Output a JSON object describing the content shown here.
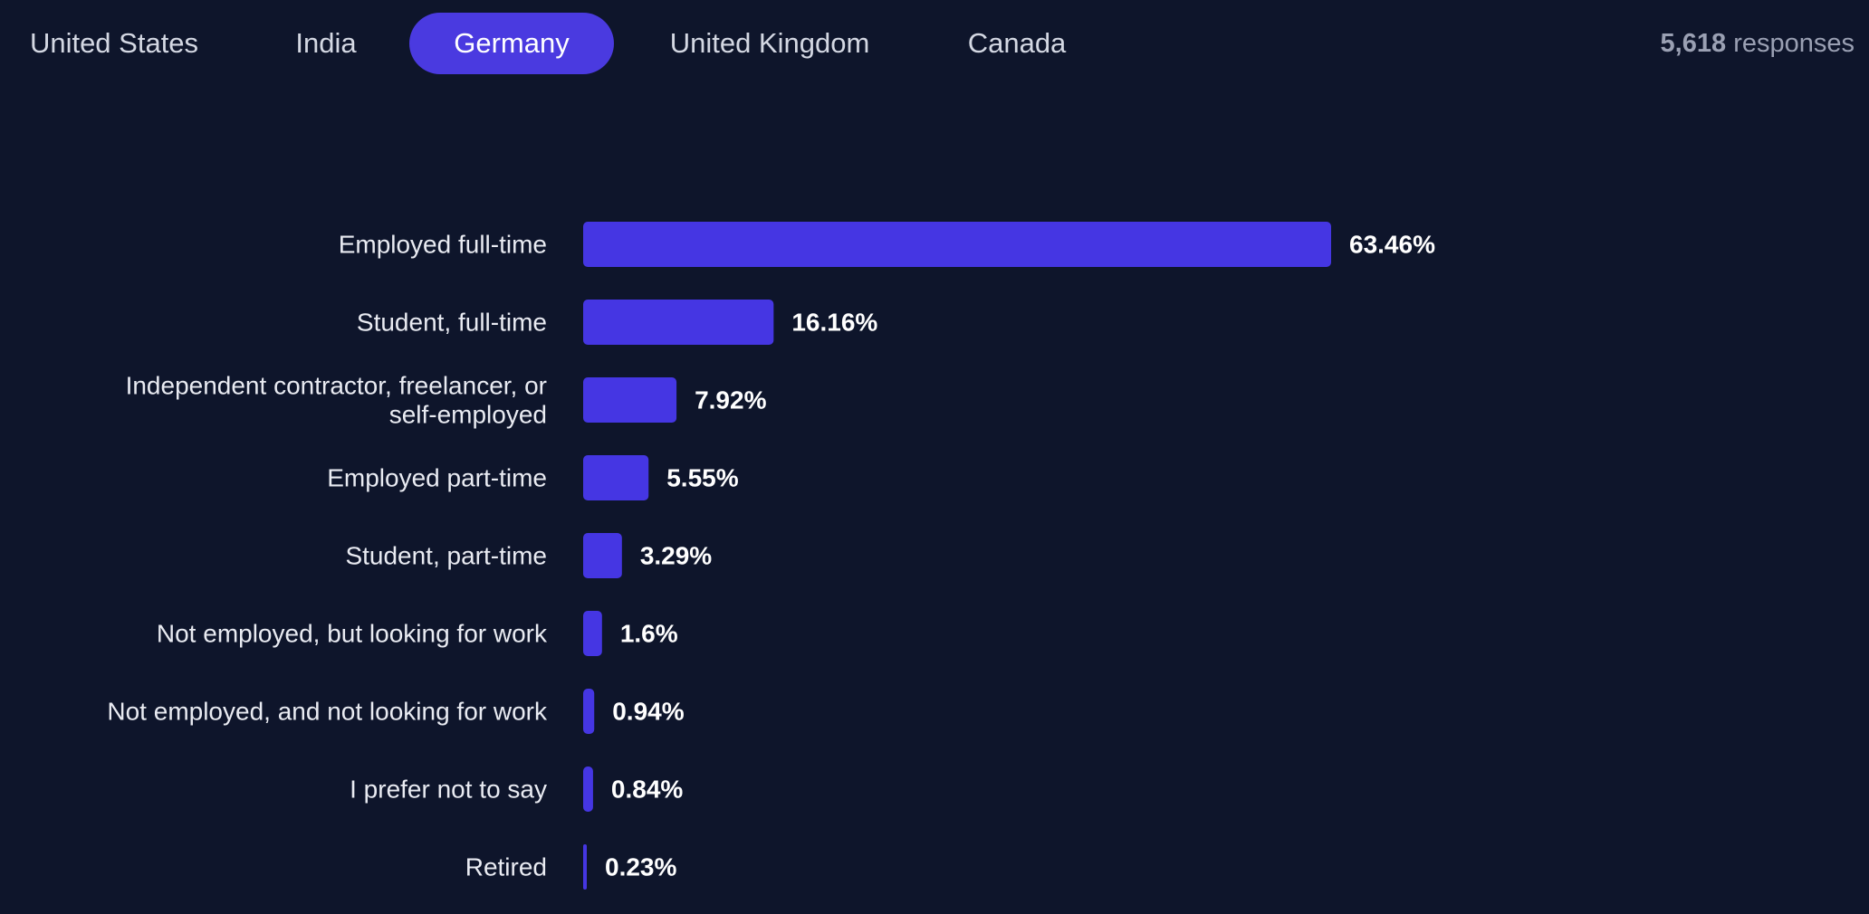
{
  "tabs": [
    {
      "label": "United States",
      "active": false
    },
    {
      "label": "India",
      "active": false
    },
    {
      "label": "Germany",
      "active": true
    },
    {
      "label": "United Kingdom",
      "active": false
    },
    {
      "label": "Canada",
      "active": false
    }
  ],
  "responses": {
    "count": "5,618",
    "label": "responses"
  },
  "colors": {
    "background": "#0e152b",
    "bar": "#4536e3",
    "active_tab": "#4a3ae0"
  },
  "chart_data": {
    "type": "bar",
    "orientation": "horizontal",
    "categories": [
      "Employed full-time",
      "Student, full-time",
      "Independent contractor, freelancer, or self-employed",
      "Employed part-time",
      "Student, part-time",
      "Not employed, but looking for work",
      "Not employed, and not looking for work",
      "I prefer not to say",
      "Retired"
    ],
    "category_lines": [
      [
        "Employed full-time"
      ],
      [
        "Student, full-time"
      ],
      [
        "Independent contractor, freelancer, or",
        "self-employed"
      ],
      [
        "Employed part-time"
      ],
      [
        "Student, part-time"
      ],
      [
        "Not employed, but looking for work"
      ],
      [
        "Not employed, and not looking for work"
      ],
      [
        "I prefer not to say"
      ],
      [
        "Retired"
      ]
    ],
    "values": [
      63.46,
      16.16,
      7.92,
      5.55,
      3.29,
      1.6,
      0.94,
      0.84,
      0.23
    ],
    "value_labels": [
      "63.46%",
      "16.16%",
      "7.92%",
      "5.55%",
      "3.29%",
      "1.6%",
      "0.94%",
      "0.84%",
      "0.23%"
    ],
    "unit": "%",
    "grid": false,
    "legend": "none"
  }
}
